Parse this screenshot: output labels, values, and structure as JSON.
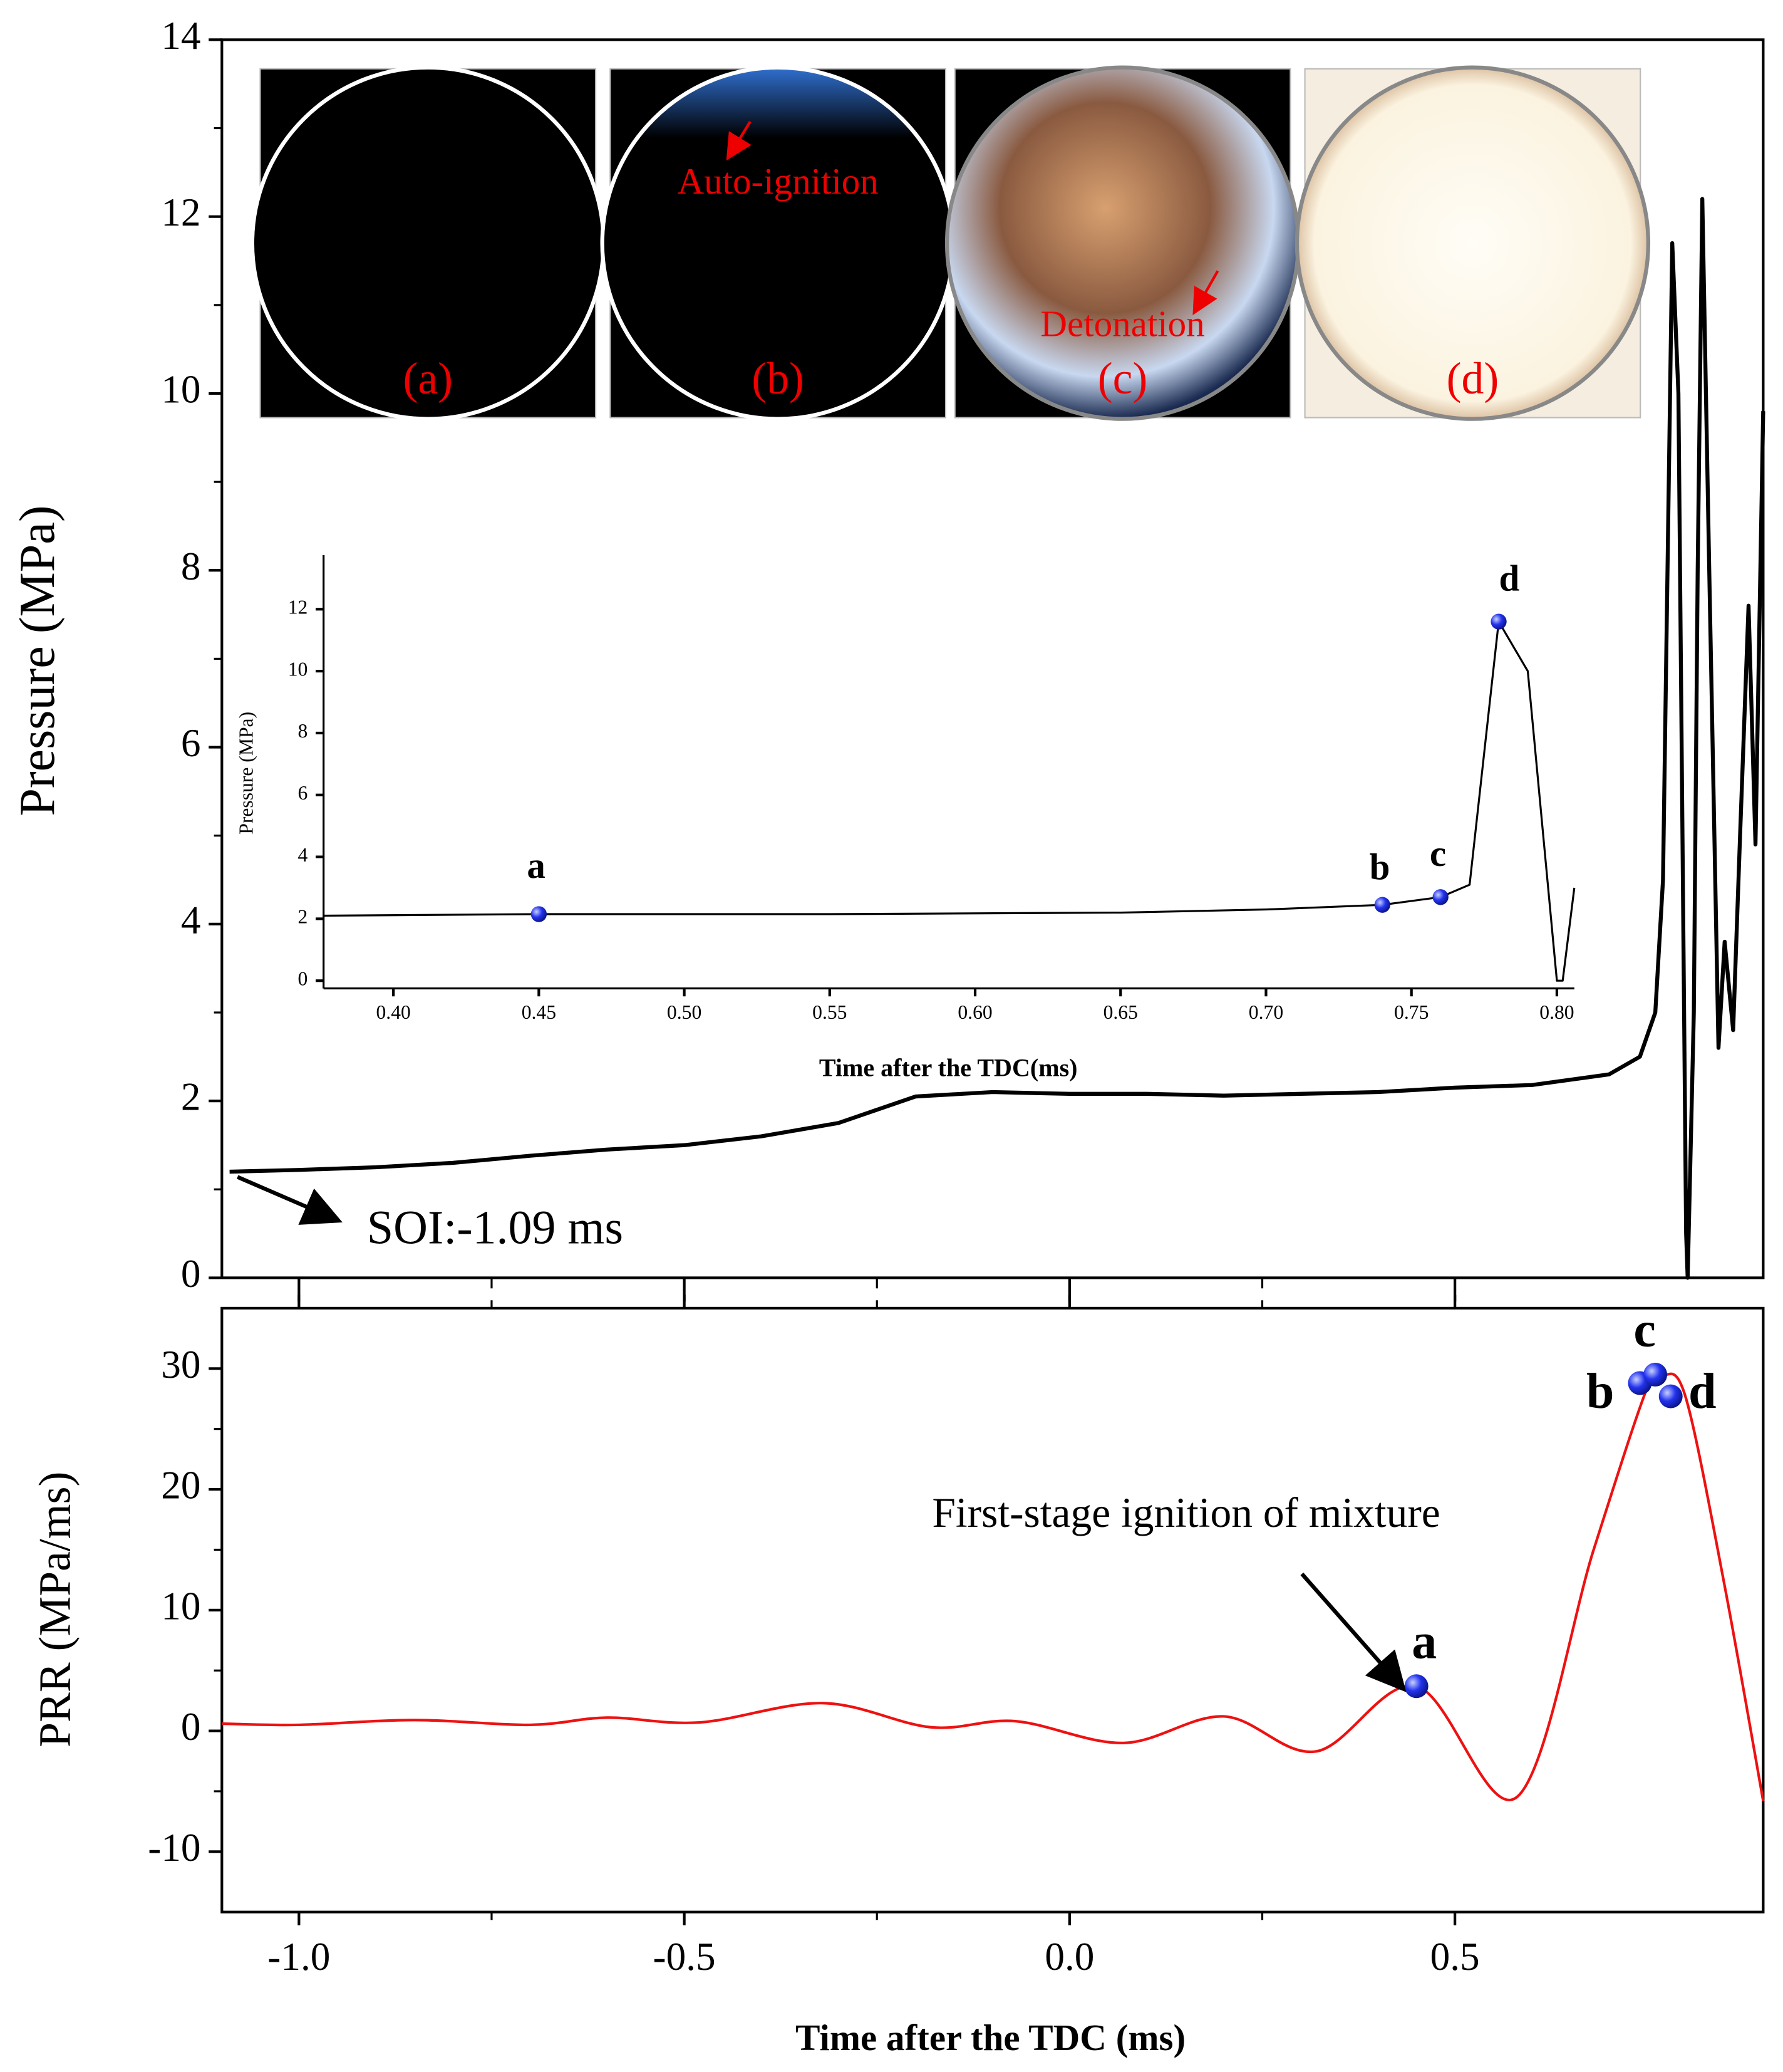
{
  "chart_data": [
    {
      "type": "line",
      "ylabel": "Pressure (MPa)",
      "xlim": [
        -1.1,
        0.9
      ],
      "ylim": [
        0,
        14
      ],
      "yticks": [
        0,
        2,
        4,
        6,
        8,
        10,
        12,
        14
      ],
      "x": [
        -1.09,
        -1.0,
        -0.9,
        -0.8,
        -0.7,
        -0.6,
        -0.5,
        -0.4,
        -0.3,
        -0.25,
        -0.2,
        -0.1,
        0.0,
        0.1,
        0.2,
        0.3,
        0.4,
        0.5,
        0.6,
        0.7,
        0.74,
        0.76,
        0.77,
        0.782,
        0.79,
        0.8,
        0.802,
        0.81,
        0.815,
        0.821,
        0.83,
        0.842,
        0.85,
        0.861,
        0.87,
        0.881,
        0.89,
        0.9
      ],
      "series": [
        {
          "color": "#000000",
          "values": [
            1.2,
            1.22,
            1.25,
            1.3,
            1.38,
            1.45,
            1.5,
            1.6,
            1.75,
            1.9,
            2.05,
            2.1,
            2.08,
            2.08,
            2.06,
            2.08,
            2.1,
            2.15,
            2.18,
            2.3,
            2.5,
            3.0,
            4.5,
            11.7,
            10.0,
            0.5,
            0.0,
            3.0,
            8.0,
            12.2,
            8.0,
            2.6,
            3.8,
            2.8,
            5.0,
            7.6,
            4.9,
            9.8
          ]
        }
      ],
      "annotations": [
        {
          "text": "SOI:-1.09 ms",
          "x": -1.09,
          "y": 1.2
        }
      ],
      "photos": [
        {
          "label": "(a)"
        },
        {
          "label": "(b)",
          "note": "Auto-ignition"
        },
        {
          "label": "(c)",
          "note": "Detonation"
        },
        {
          "label": "(d)"
        }
      ]
    },
    {
      "type": "line",
      "ylabel": "PRR (MPa/ms)",
      "xlabel": "Time after the TDC (ms)",
      "xlim": [
        -1.1,
        0.9
      ],
      "ylim": [
        -15,
        35
      ],
      "xticks": [
        {
          "value": -1,
          "label": "-1.0"
        },
        -0.5,
        {
          "value": 0,
          "label": "0.0"
        },
        0.5
      ],
      "yticks": [
        -10,
        0,
        10,
        20,
        30
      ],
      "x": [
        -1.1,
        -1.0,
        -0.85,
        -0.7,
        -0.6,
        -0.48,
        -0.32,
        -0.18,
        -0.07,
        0.07,
        0.2,
        0.32,
        0.45,
        0.58,
        0.68,
        0.75,
        0.77,
        0.8,
        0.85,
        0.9
      ],
      "series": [
        {
          "color": "#ee1111",
          "values": [
            0.6,
            0.5,
            0.9,
            0.5,
            1.1,
            0.7,
            2.3,
            0.3,
            0.8,
            -1.0,
            1.2,
            -1.7,
            3.7,
            -5.5,
            15,
            28.5,
            29.5,
            27.5,
            12,
            -5.8
          ]
        }
      ],
      "points": {
        "color": "#2233ee",
        "x": [
          0.45,
          0.74,
          0.76,
          0.78
        ],
        "values": [
          3.7,
          28.8,
          29.5,
          27.7
        ],
        "labels": [
          "a",
          "b",
          "c",
          "d"
        ]
      },
      "annotations": [
        {
          "text": "First-stage ignition of mixture",
          "x": 0.43,
          "y": 3.7
        }
      ]
    },
    {
      "type": "line",
      "ylabel": "Pressure (MPa)",
      "xlabel": "Time after the  TDC(ms)",
      "xlim": [
        0.376,
        0.806
      ],
      "ylim": [
        -0.25,
        13.75
      ],
      "xticks": [
        {
          "value": 0.4,
          "label": "0.40"
        },
        0.45,
        {
          "value": 0.5,
          "label": "0.50"
        },
        0.55,
        {
          "value": 0.6,
          "label": "0.60"
        },
        0.65,
        {
          "value": 0.7,
          "label": "0.70"
        },
        0.75,
        {
          "value": 0.8,
          "label": "0.80"
        }
      ],
      "yticks": [
        0,
        2,
        4,
        6,
        8,
        10,
        12
      ],
      "x": [
        0.376,
        0.45,
        0.55,
        0.65,
        0.7,
        0.74,
        0.76,
        0.77,
        0.78,
        0.79,
        0.8,
        0.802,
        0.806
      ],
      "series": [
        {
          "color": "#000000",
          "values": [
            2.1,
            2.15,
            2.15,
            2.2,
            2.3,
            2.45,
            2.7,
            3.1,
            11.6,
            10.0,
            0.0,
            0.0,
            3.0
          ]
        }
      ],
      "points": {
        "color": "#2233ee",
        "x": [
          0.45,
          0.74,
          0.76,
          0.78
        ],
        "values": [
          2.15,
          2.45,
          2.7,
          11.6
        ],
        "labels": [
          "a",
          "b",
          "c",
          "d"
        ]
      }
    }
  ]
}
